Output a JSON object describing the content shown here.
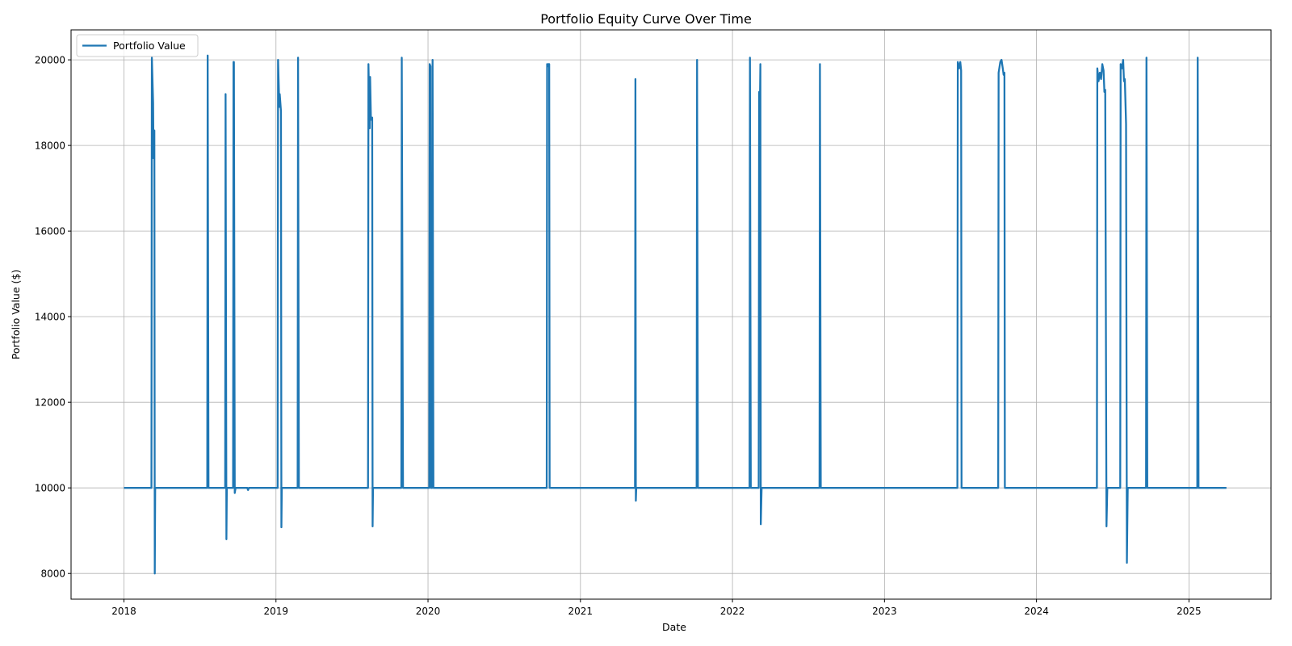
{
  "chart_data": {
    "type": "line",
    "title": "Portfolio Equity Curve Over Time",
    "xlabel": "Date",
    "ylabel": "Portfolio Value ($)",
    "xlim": [
      "2017-08-27",
      "2025-07-17"
    ],
    "ylim": [
      7400,
      20700
    ],
    "x_ticks": [
      "2018",
      "2019",
      "2020",
      "2021",
      "2022",
      "2023",
      "2024",
      "2025"
    ],
    "x_tick_dates": [
      "2018-01-01",
      "2019-01-01",
      "2020-01-01",
      "2021-01-01",
      "2022-01-01",
      "2023-01-01",
      "2024-01-01",
      "2025-01-01"
    ],
    "y_ticks": [
      8000,
      10000,
      12000,
      14000,
      16000,
      18000,
      20000
    ],
    "grid": true,
    "legend": {
      "position": "top-left"
    },
    "colors": {
      "series": "#1f77b4",
      "grid": "#b0b0b0",
      "axes": "#000000"
    },
    "series": [
      {
        "name": "Portfolio Value",
        "points": [
          [
            "2018-01-01",
            10000
          ],
          [
            "2018-03-08",
            10000
          ],
          [
            "2018-03-09",
            20050
          ],
          [
            "2018-03-12",
            19000
          ],
          [
            "2018-03-13",
            17700
          ],
          [
            "2018-03-14",
            18300
          ],
          [
            "2018-03-15",
            18350
          ],
          [
            "2018-03-16",
            8000
          ],
          [
            "2018-03-17",
            10000
          ],
          [
            "2018-07-20",
            10000
          ],
          [
            "2018-07-21",
            20100
          ],
          [
            "2018-07-23",
            10000
          ],
          [
            "2018-09-01",
            10000
          ],
          [
            "2018-09-02",
            19200
          ],
          [
            "2018-09-04",
            8800
          ],
          [
            "2018-09-05",
            10000
          ],
          [
            "2018-09-20",
            10000
          ],
          [
            "2018-09-21",
            19950
          ],
          [
            "2018-09-22",
            19950
          ],
          [
            "2018-09-24",
            9880
          ],
          [
            "2018-09-26",
            10000
          ],
          [
            "2018-10-24",
            10000
          ],
          [
            "2018-10-26",
            9950
          ],
          [
            "2018-10-28",
            10000
          ],
          [
            "2019-01-05",
            10000
          ],
          [
            "2019-01-06",
            20000
          ],
          [
            "2019-01-09",
            18900
          ],
          [
            "2019-01-10",
            19200
          ],
          [
            "2019-01-13",
            18800
          ],
          [
            "2019-01-14",
            9080
          ],
          [
            "2019-01-15",
            10000
          ],
          [
            "2019-02-22",
            10000
          ],
          [
            "2019-02-23",
            20050
          ],
          [
            "2019-02-25",
            10000
          ],
          [
            "2019-08-10",
            10000
          ],
          [
            "2019-08-11",
            19900
          ],
          [
            "2019-08-14",
            18400
          ],
          [
            "2019-08-15",
            19600
          ],
          [
            "2019-08-17",
            18600
          ],
          [
            "2019-08-20",
            18650
          ],
          [
            "2019-08-21",
            9100
          ],
          [
            "2019-08-22",
            10000
          ],
          [
            "2019-10-29",
            10000
          ],
          [
            "2019-10-30",
            20050
          ],
          [
            "2019-11-02",
            10000
          ],
          [
            "2020-01-04",
            10000
          ],
          [
            "2020-01-05",
            19900
          ],
          [
            "2020-01-07",
            19850
          ],
          [
            "2020-01-08",
            10000
          ],
          [
            "2020-01-11",
            10000
          ],
          [
            "2020-01-12",
            20000
          ],
          [
            "2020-01-14",
            10000
          ],
          [
            "2020-10-12",
            10000
          ],
          [
            "2020-10-13",
            19900
          ],
          [
            "2020-10-15",
            19850
          ],
          [
            "2020-10-16",
            19900
          ],
          [
            "2020-10-18",
            19900
          ],
          [
            "2020-10-19",
            10000
          ],
          [
            "2021-05-12",
            10000
          ],
          [
            "2021-05-13",
            19550
          ],
          [
            "2021-05-14",
            9700
          ],
          [
            "2021-05-15",
            10000
          ],
          [
            "2021-10-07",
            10000
          ],
          [
            "2021-10-08",
            20000
          ],
          [
            "2021-10-10",
            10000
          ],
          [
            "2022-02-11",
            10000
          ],
          [
            "2022-02-12",
            20050
          ],
          [
            "2022-02-14",
            10000
          ],
          [
            "2022-03-05",
            10000
          ],
          [
            "2022-03-06",
            19250
          ],
          [
            "2022-03-08",
            19000
          ],
          [
            "2022-03-09",
            19900
          ],
          [
            "2022-03-10",
            9150
          ],
          [
            "2022-03-12",
            10000
          ],
          [
            "2022-07-29",
            10000
          ],
          [
            "2022-07-30",
            19900
          ],
          [
            "2022-08-01",
            10000
          ],
          [
            "2023-06-25",
            10000
          ],
          [
            "2023-06-26",
            19950
          ],
          [
            "2023-06-29",
            19800
          ],
          [
            "2023-07-02",
            19950
          ],
          [
            "2023-07-04",
            19750
          ],
          [
            "2023-07-05",
            10000
          ],
          [
            "2023-10-01",
            10000
          ],
          [
            "2023-10-02",
            19700
          ],
          [
            "2023-10-06",
            19950
          ],
          [
            "2023-10-09",
            20000
          ],
          [
            "2023-10-12",
            19800
          ],
          [
            "2023-10-14",
            19650
          ],
          [
            "2023-10-16",
            19700
          ],
          [
            "2023-10-17",
            10000
          ],
          [
            "2024-05-25",
            10000
          ],
          [
            "2024-05-26",
            19800
          ],
          [
            "2024-05-29",
            19500
          ],
          [
            "2024-06-01",
            19700
          ],
          [
            "2024-06-04",
            19550
          ],
          [
            "2024-06-07",
            19900
          ],
          [
            "2024-06-10",
            19750
          ],
          [
            "2024-06-12",
            19250
          ],
          [
            "2024-06-14",
            19300
          ],
          [
            "2024-06-17",
            9100
          ],
          [
            "2024-06-19",
            10000
          ],
          [
            "2024-07-20",
            10000
          ],
          [
            "2024-07-21",
            19900
          ],
          [
            "2024-07-24",
            19800
          ],
          [
            "2024-07-27",
            20000
          ],
          [
            "2024-07-29",
            19500
          ],
          [
            "2024-07-31",
            19550
          ],
          [
            "2024-08-03",
            18500
          ],
          [
            "2024-08-05",
            8250
          ],
          [
            "2024-08-07",
            10000
          ],
          [
            "2024-09-20",
            10000
          ],
          [
            "2024-09-21",
            20050
          ],
          [
            "2024-09-23",
            10000
          ],
          [
            "2025-01-21",
            10000
          ],
          [
            "2025-01-22",
            20050
          ],
          [
            "2025-01-24",
            10000
          ],
          [
            "2025-04-01",
            10000
          ]
        ]
      }
    ]
  }
}
